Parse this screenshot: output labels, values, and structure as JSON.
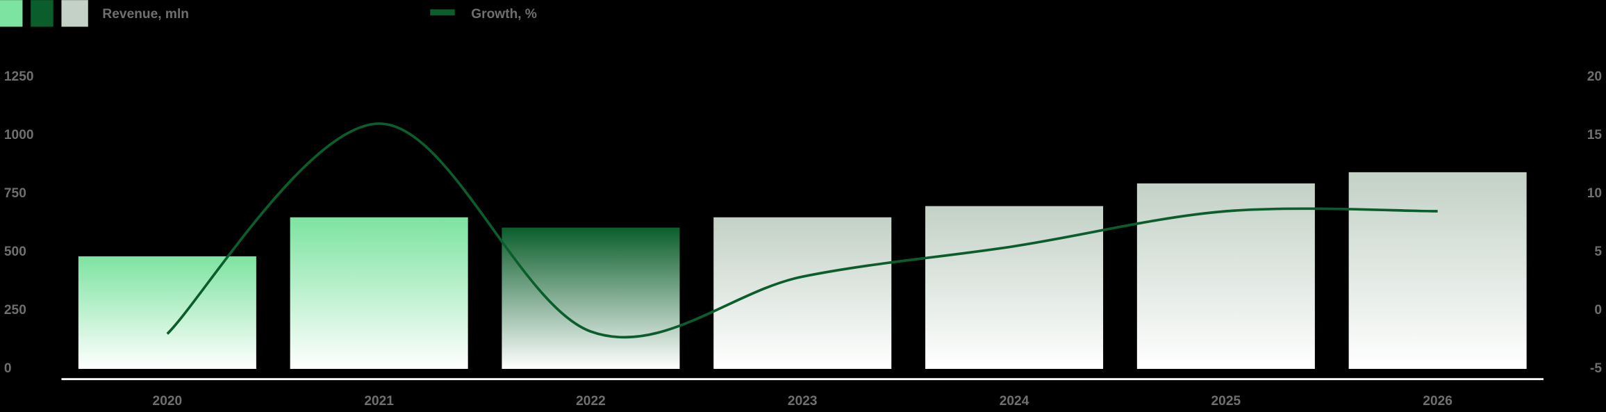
{
  "chart_data": {
    "type": "bar_line",
    "categories": [
      "2020",
      "2021",
      "2022",
      "2023",
      "2024",
      "2025",
      "2026"
    ],
    "series": [
      {
        "name": "Revenue, mln",
        "type": "bar",
        "values": [
          482,
          649,
          605,
          649,
          697,
          794,
          842
        ],
        "colors": [
          "#7de3a0",
          "#7de3a0",
          "#0b5e2c",
          "#c3d1c6",
          "#c3d1c6",
          "#c3d1c6",
          "#c3d1c6"
        ]
      },
      {
        "name": "Growth, %",
        "type": "line",
        "axis": "y2",
        "color": "#0b5e2c",
        "values": [
          -2,
          16,
          -1.8,
          2.9,
          5.5,
          8.5,
          8.5
        ]
      }
    ],
    "legend_swatches": [
      "#7de3a0",
      "#0b5e2c",
      "#c3d1c6"
    ],
    "ylim": [
      0,
      1250
    ],
    "yticks": [
      0,
      250,
      500,
      750,
      1000,
      1250
    ],
    "y2lim": [
      -5,
      20
    ],
    "y2ticks": [
      -5,
      0,
      5,
      10,
      15,
      20
    ]
  }
}
